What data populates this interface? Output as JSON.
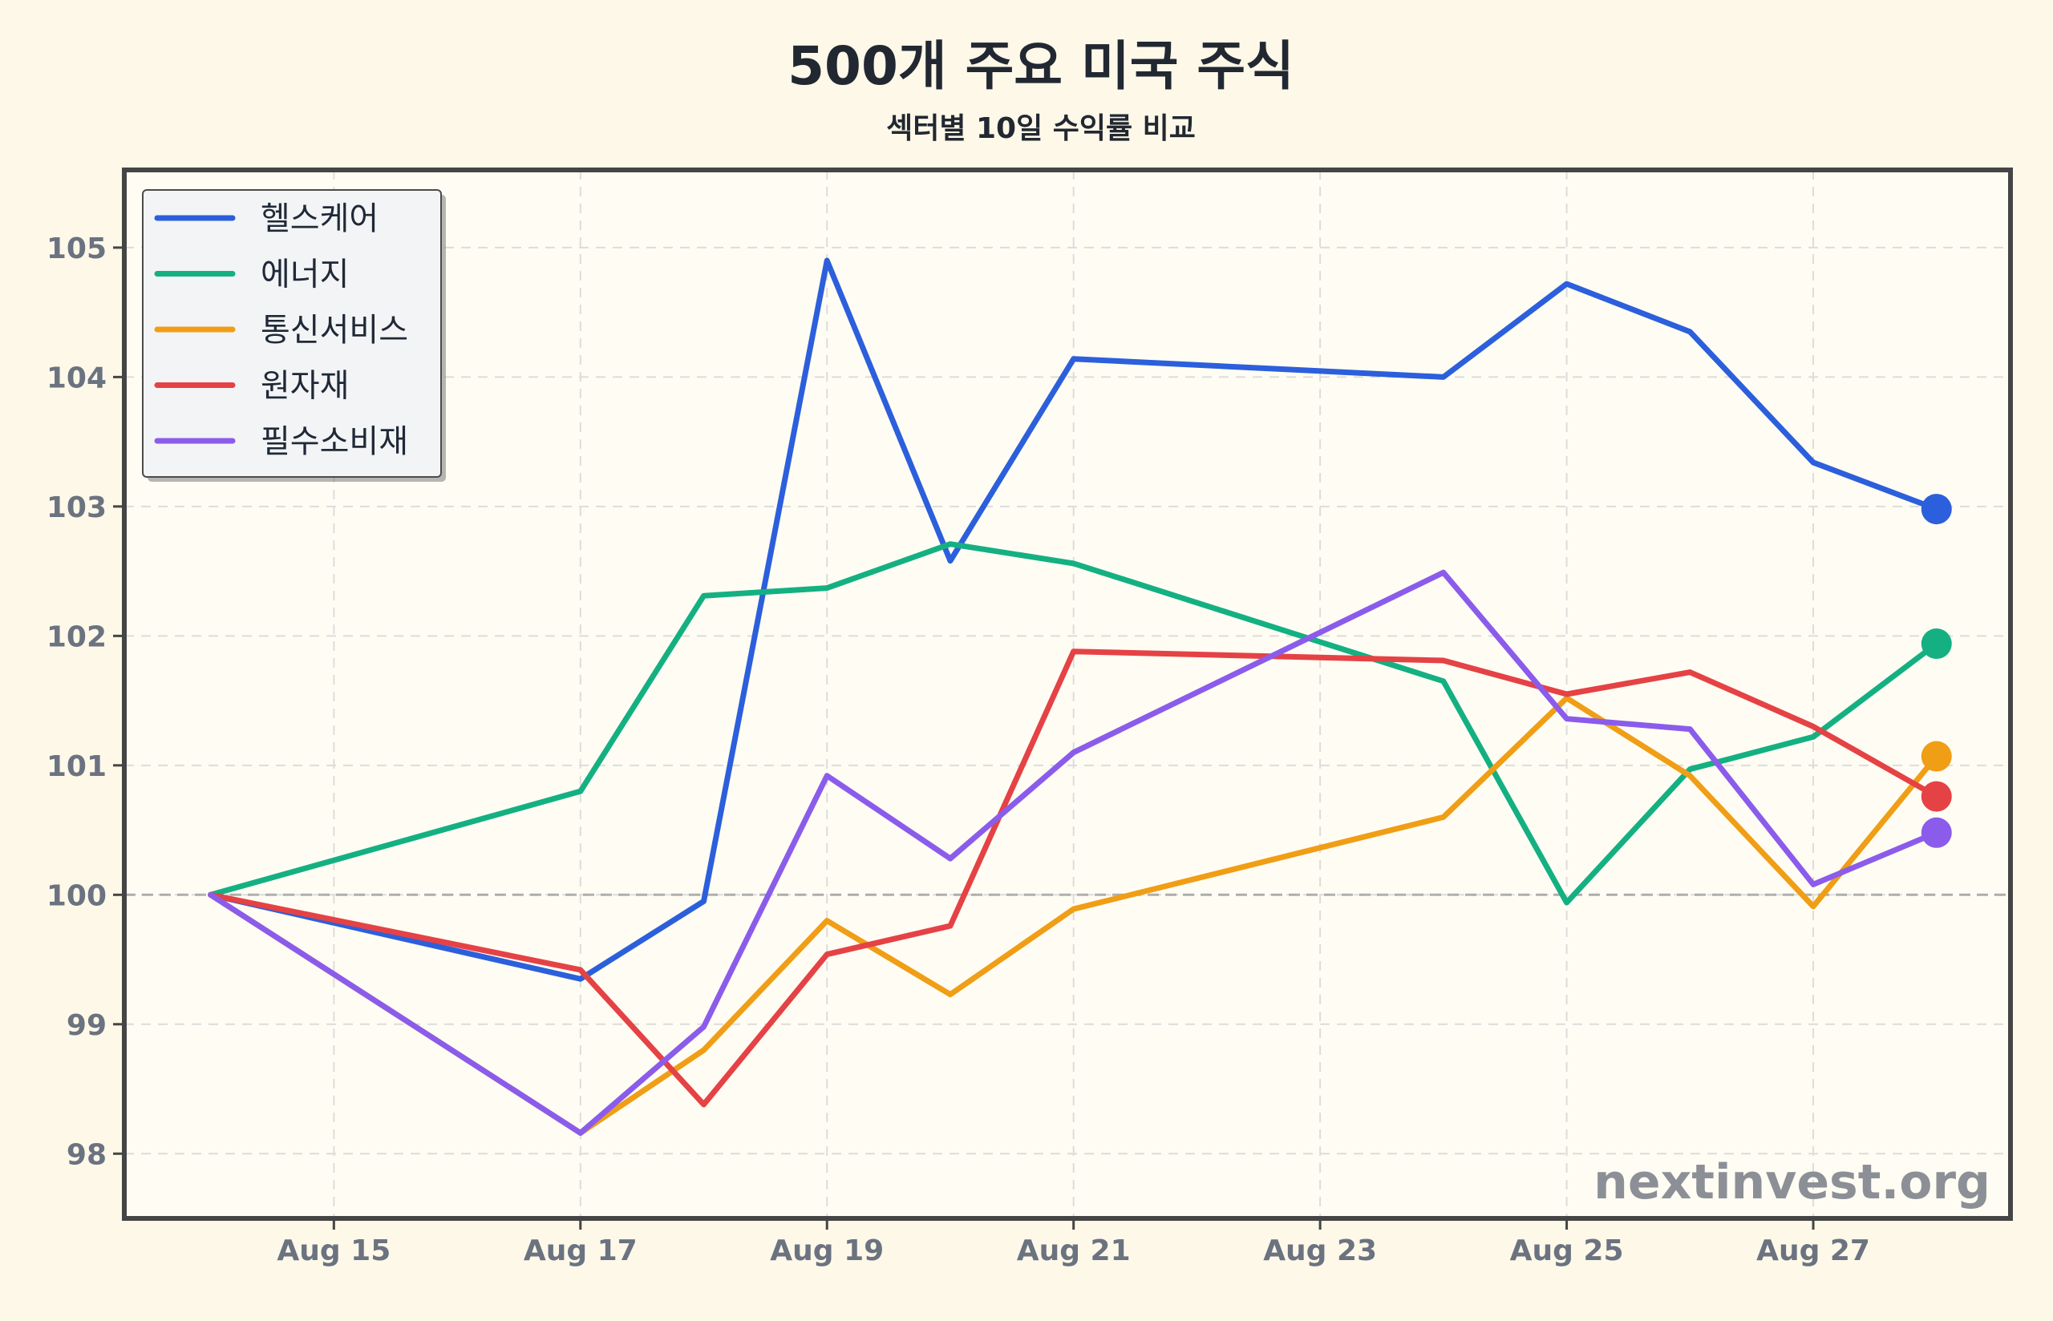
{
  "chart_data": {
    "type": "line",
    "title": "500개 주요 미국 주식",
    "subtitle": "섹터별 10일 수익률 비교",
    "xlabel": "",
    "ylabel": "",
    "x": [
      "Aug 14",
      "Aug 17",
      "Aug 18",
      "Aug 19",
      "Aug 20",
      "Aug 21",
      "Aug 24",
      "Aug 25",
      "Aug 26",
      "Aug 27",
      "Aug 28"
    ],
    "x_day": [
      14,
      17,
      18,
      19,
      20,
      21,
      24,
      25,
      26,
      27,
      28
    ],
    "x_ticks": [
      {
        "day": 15,
        "label": "Aug 15"
      },
      {
        "day": 17,
        "label": "Aug 17"
      },
      {
        "day": 19,
        "label": "Aug 19"
      },
      {
        "day": 21,
        "label": "Aug 21"
      },
      {
        "day": 23,
        "label": "Aug 23"
      },
      {
        "day": 25,
        "label": "Aug 25"
      },
      {
        "day": 27,
        "label": "Aug 27"
      }
    ],
    "xlim": [
      "Aug 13.3",
      "Aug 28.6"
    ],
    "ylim": [
      97.5,
      105.6
    ],
    "y_ticks": [
      98,
      99,
      100,
      101,
      102,
      103,
      104,
      105
    ],
    "baseline": 100,
    "grid": true,
    "legend_position": "top-left",
    "series": [
      {
        "name": "헬스케어",
        "color": "#2c5fdc",
        "values": [
          100,
          99.35,
          99.95,
          104.9,
          102.58,
          104.14,
          104.0,
          104.72,
          104.35,
          103.34,
          102.98
        ]
      },
      {
        "name": "에너지",
        "color": "#14b082",
        "values": [
          100,
          100.8,
          102.31,
          102.37,
          102.71,
          102.56,
          101.65,
          99.94,
          100.97,
          101.22,
          101.94
        ]
      },
      {
        "name": "통신서비스",
        "color": "#f09e16",
        "values": [
          100,
          98.16,
          98.8,
          99.8,
          99.23,
          99.89,
          100.6,
          101.52,
          100.92,
          99.91,
          101.07
        ]
      },
      {
        "name": "원자재",
        "color": "#e54245",
        "values": [
          100,
          99.42,
          98.38,
          99.54,
          99.76,
          101.88,
          101.81,
          101.55,
          101.72,
          101.3,
          100.76
        ]
      },
      {
        "name": "필수소비재",
        "color": "#8b5ceb",
        "values": [
          100,
          98.16,
          98.98,
          100.92,
          100.28,
          101.1,
          102.49,
          101.36,
          101.28,
          100.08,
          100.48
        ]
      }
    ]
  },
  "watermark": "nextinvest.org",
  "colors": {
    "background": "#fdf8e8",
    "plot_background": "#fffdf3",
    "frame": "#454545",
    "grid": "#dcdcdc",
    "tick_text": "#6b7280"
  }
}
